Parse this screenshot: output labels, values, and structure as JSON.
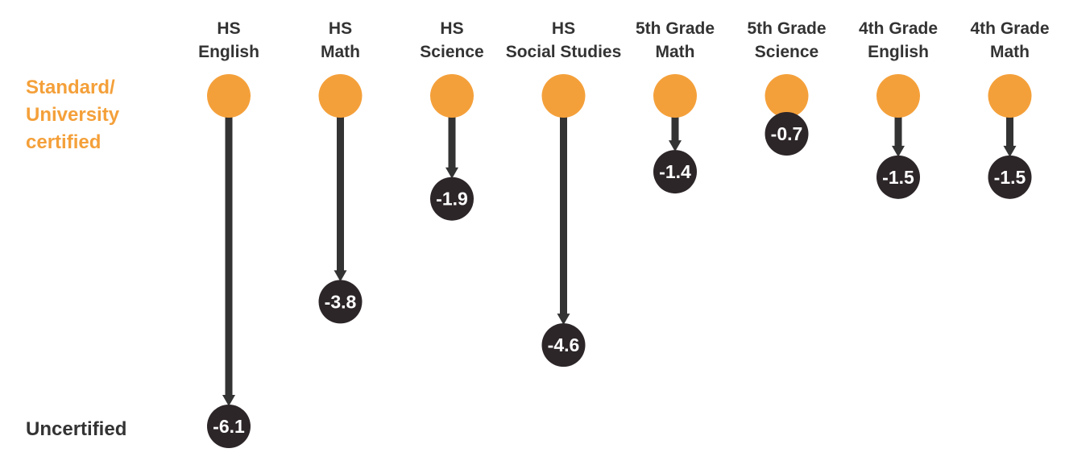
{
  "chart_data": {
    "type": "dot-arrow",
    "series_labels": {
      "top": "Standard/\nUniversity\ncertified",
      "bottom": "Uncertified"
    },
    "categories": [
      [
        "HS",
        "English"
      ],
      [
        "HS",
        "Math"
      ],
      [
        "HS",
        "Science"
      ],
      [
        "HS",
        "Social Studies"
      ],
      [
        "5th Grade",
        "Math"
      ],
      [
        "5th Grade",
        "Science"
      ],
      [
        "4th Grade",
        "English"
      ],
      [
        "4th Grade",
        "Math"
      ]
    ],
    "values": [
      -6.1,
      -3.8,
      -1.9,
      -4.6,
      -1.4,
      -0.7,
      -1.5,
      -1.5
    ],
    "value_labels": [
      "-6.1",
      "-3.8",
      "-1.9",
      "-4.6",
      "-1.4",
      "-0.7",
      "-1.5",
      "-1.5"
    ],
    "baseline": 0,
    "ylim": [
      -6.1,
      0
    ],
    "grid": false,
    "colors": {
      "start_dot": "#f4a03a",
      "end_dot": "#2d2628",
      "arrow": "#333333",
      "top_label": "#f4a03a",
      "bottom_label": "#333333",
      "category_label": "#333333",
      "value_text": "#ffffff"
    }
  }
}
